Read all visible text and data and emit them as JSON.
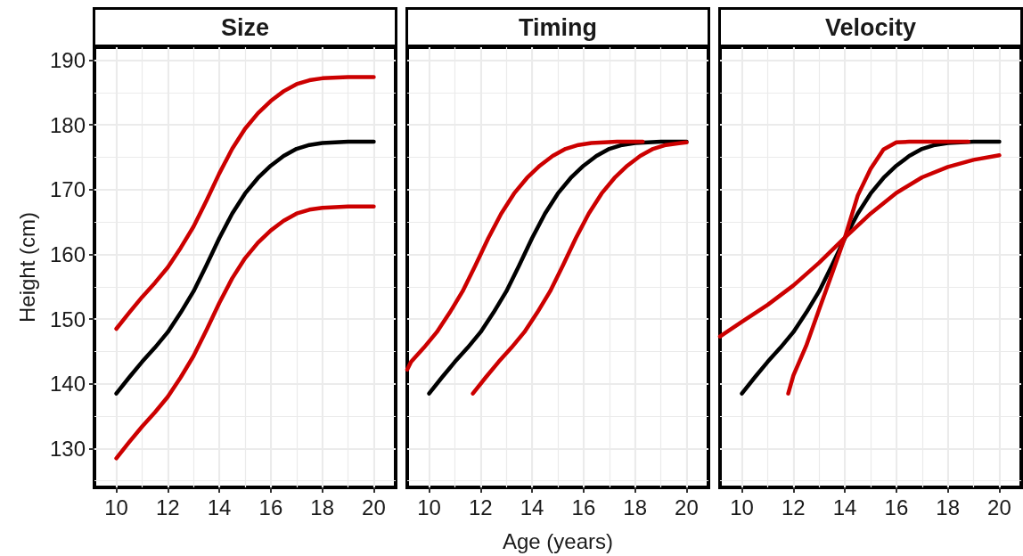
{
  "chart_data": [
    {
      "type": "line",
      "title": "Size",
      "ylabel": "Height (cm)",
      "xlim": [
        9.15,
        20.85
      ],
      "ylim": [
        124,
        192
      ],
      "xticks": [
        10,
        12,
        14,
        16,
        18,
        20
      ],
      "yticks": [
        130,
        140,
        150,
        160,
        170,
        180,
        190
      ],
      "grid": true,
      "marker": "none",
      "line_style": "solid",
      "series": [
        {
          "color": "#000000",
          "x": [
            10,
            10.5,
            11,
            11.5,
            12,
            12.5,
            13,
            13.5,
            14,
            14.5,
            15,
            15.5,
            16,
            16.5,
            17,
            17.5,
            18,
            19,
            20
          ],
          "values": [
            138.5,
            141,
            143.4,
            145.6,
            148,
            151,
            154.3,
            158.3,
            162.5,
            166.3,
            169.4,
            171.8,
            173.7,
            175.2,
            176.3,
            176.9,
            177.2,
            177.4,
            177.4
          ]
        },
        {
          "color": "#cc0000",
          "x": [
            10,
            10.5,
            11,
            11.5,
            12,
            12.5,
            13,
            13.5,
            14,
            14.5,
            15,
            15.5,
            16,
            16.5,
            17,
            17.5,
            18,
            19,
            20
          ],
          "values": [
            148.5,
            151,
            153.4,
            155.6,
            158,
            161,
            164.3,
            168.3,
            172.5,
            176.3,
            179.4,
            181.8,
            183.7,
            185.2,
            186.3,
            186.9,
            187.2,
            187.4,
            187.4
          ]
        },
        {
          "color": "#cc0000",
          "x": [
            10,
            10.5,
            11,
            11.5,
            12,
            12.5,
            13,
            13.5,
            14,
            14.5,
            15,
            15.5,
            16,
            16.5,
            17,
            17.5,
            18,
            19,
            20
          ],
          "values": [
            128.5,
            131,
            133.4,
            135.6,
            138,
            141,
            144.3,
            148.3,
            152.5,
            156.3,
            159.4,
            161.8,
            163.7,
            165.2,
            166.3,
            166.9,
            167.2,
            167.4,
            167.4
          ]
        }
      ]
    },
    {
      "type": "line",
      "title": "Timing",
      "xlabel": "Age (years)",
      "xlim": [
        9.15,
        20.85
      ],
      "ylim": [
        124,
        192
      ],
      "xticks": [
        10,
        12,
        14,
        16,
        18,
        20
      ],
      "yticks": [
        130,
        140,
        150,
        160,
        170,
        180,
        190
      ],
      "tick_labels": "x",
      "grid": true,
      "marker": "none",
      "line_style": "solid",
      "series": [
        {
          "color": "#000000",
          "x": [
            10,
            10.5,
            11,
            11.5,
            12,
            12.5,
            13,
            13.5,
            14,
            14.5,
            15,
            15.5,
            16,
            16.5,
            17,
            17.5,
            18,
            19,
            20
          ],
          "values": [
            138.5,
            141,
            143.4,
            145.6,
            148,
            151,
            154.3,
            158.3,
            162.5,
            166.3,
            169.4,
            171.8,
            173.7,
            175.2,
            176.3,
            176.9,
            177.2,
            177.4,
            177.4
          ]
        },
        {
          "color": "#cc0000",
          "x": [
            9.15,
            9.3,
            9.8,
            10.3,
            10.8,
            11.3,
            11.8,
            12.3,
            12.8,
            13.3,
            13.8,
            14.3,
            14.8,
            15.3,
            15.8,
            16.3,
            17.3,
            18.3
          ],
          "values": [
            142.2,
            143.4,
            145.6,
            148,
            151,
            154.3,
            158.3,
            162.5,
            166.3,
            169.4,
            171.8,
            173.7,
            175.2,
            176.3,
            176.9,
            177.2,
            177.4,
            177.4
          ]
        },
        {
          "color": "#cc0000",
          "x": [
            11.7,
            12.2,
            12.7,
            13.2,
            13.7,
            14.2,
            14.7,
            15.2,
            15.7,
            16.2,
            16.7,
            17.2,
            17.7,
            18.2,
            18.7,
            19.2,
            20
          ],
          "values": [
            138.5,
            141,
            143.4,
            145.6,
            148,
            151,
            154.3,
            158.3,
            162.5,
            166.3,
            169.4,
            171.8,
            173.7,
            175.2,
            176.3,
            176.9,
            177.3
          ]
        }
      ]
    },
    {
      "type": "line",
      "title": "Velocity",
      "xlim": [
        9.15,
        20.85
      ],
      "ylim": [
        124,
        192
      ],
      "xticks": [
        10,
        12,
        14,
        16,
        18,
        20
      ],
      "yticks": [
        130,
        140,
        150,
        160,
        170,
        180,
        190
      ],
      "tick_labels": "x",
      "grid": true,
      "marker": "none",
      "line_style": "solid",
      "series": [
        {
          "color": "#000000",
          "x": [
            10,
            10.5,
            11,
            11.5,
            12,
            12.5,
            13,
            13.5,
            14,
            14.5,
            15,
            15.5,
            16,
            16.5,
            17,
            17.5,
            18,
            19,
            20
          ],
          "values": [
            138.5,
            141,
            143.4,
            145.6,
            148,
            151,
            154.3,
            158.3,
            162.5,
            166.3,
            169.4,
            171.8,
            173.7,
            175.2,
            176.3,
            176.9,
            177.2,
            177.4,
            177.4
          ]
        },
        {
          "color": "#cc0000",
          "x": [
            11.8,
            12,
            12.5,
            13,
            13.5,
            14,
            14.5,
            15,
            15.5,
            16,
            16.5,
            18.8
          ],
          "values": [
            138.5,
            141.3,
            145.9,
            151.5,
            157,
            162.6,
            169.1,
            173.2,
            176.2,
            177.3,
            177.4,
            177.4
          ]
        },
        {
          "color": "#cc0000",
          "x": [
            9.15,
            10,
            11,
            12,
            13,
            14,
            15,
            16,
            17,
            18,
            19,
            20
          ],
          "values": [
            147.3,
            149.6,
            152.2,
            155.2,
            158.7,
            162.6,
            166.3,
            169.5,
            171.9,
            173.5,
            174.6,
            175.3
          ]
        }
      ]
    }
  ]
}
